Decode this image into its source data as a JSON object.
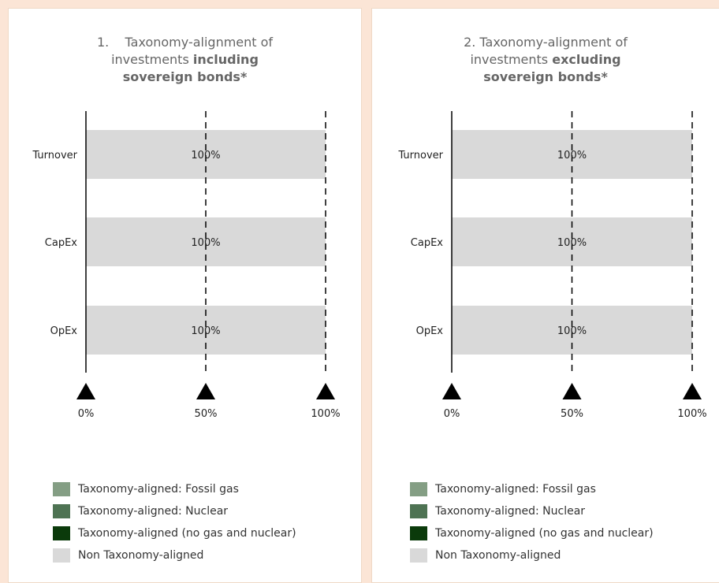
{
  "colors": {
    "fossil_gas": "#849e84",
    "nuclear": "#4e7353",
    "aligned_no_gas_nuclear": "#0b3a0b",
    "non_aligned": "#d9d9d9"
  },
  "legend": [
    {
      "label": "Taxonomy-aligned: Fossil gas",
      "color": "#849e84"
    },
    {
      "label": "Taxonomy-aligned: Nuclear",
      "color": "#4e7353"
    },
    {
      "label": "Taxonomy-aligned (no gas and nuclear)",
      "color": "#0b3a0b"
    },
    {
      "label": "Non Taxonomy-aligned",
      "color": "#d9d9d9"
    }
  ],
  "chart_data": [
    {
      "type": "bar",
      "orientation": "horizontal",
      "stacked": true,
      "title_prefix": "1.",
      "title_plain": "Taxonomy-alignment of investments ",
      "title_bold": "including sovereign bonds*",
      "categories": [
        "Turnover",
        "CapEx",
        "OpEx"
      ],
      "series": [
        {
          "name": "Taxonomy-aligned: Fossil gas",
          "values": [
            0,
            0,
            0
          ]
        },
        {
          "name": "Taxonomy-aligned: Nuclear",
          "values": [
            0,
            0,
            0
          ]
        },
        {
          "name": "Taxonomy-aligned (no gas and nuclear)",
          "values": [
            0,
            0,
            0
          ]
        },
        {
          "name": "Non Taxonomy-aligned",
          "values": [
            100,
            100,
            100
          ]
        }
      ],
      "data_labels": [
        "100%",
        "100%",
        "100%"
      ],
      "xlim": [
        0,
        100
      ],
      "ticks": [
        0,
        50,
        100
      ],
      "tick_labels": [
        "0%",
        "50%",
        "100%"
      ],
      "grid": "dashed vertical at 50% and 100%"
    },
    {
      "type": "bar",
      "orientation": "horizontal",
      "stacked": true,
      "title_prefix": "2.",
      "title_plain": "Taxonomy-alignment of investments ",
      "title_bold": "excluding sovereign bonds*",
      "categories": [
        "Turnover",
        "CapEx",
        "OpEx"
      ],
      "series": [
        {
          "name": "Taxonomy-aligned: Fossil gas",
          "values": [
            0,
            0,
            0
          ]
        },
        {
          "name": "Taxonomy-aligned: Nuclear",
          "values": [
            0,
            0,
            0
          ]
        },
        {
          "name": "Taxonomy-aligned (no gas and nuclear)",
          "values": [
            0,
            0,
            0
          ]
        },
        {
          "name": "Non Taxonomy-aligned",
          "values": [
            100,
            100,
            100
          ]
        }
      ],
      "data_labels": [
        "100%",
        "100%",
        "100%"
      ],
      "xlim": [
        0,
        100
      ],
      "ticks": [
        0,
        50,
        100
      ],
      "tick_labels": [
        "0%",
        "50%",
        "100%"
      ],
      "grid": "dashed vertical at 50% and 100%"
    }
  ]
}
